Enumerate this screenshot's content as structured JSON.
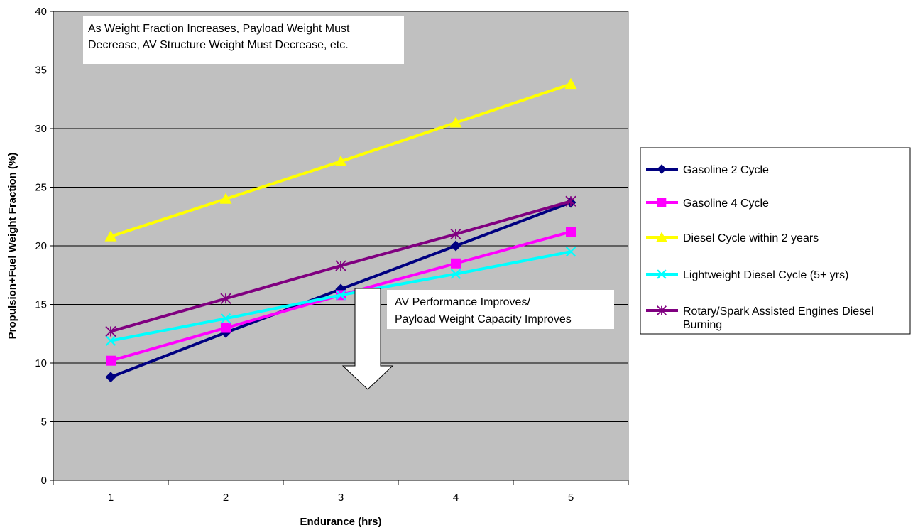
{
  "chart_data": {
    "type": "line",
    "title": "",
    "xlabel": "Endurance (hrs)",
    "ylabel": "Propulsion+Fuel Weight Fraction (%)",
    "x": [
      1,
      2,
      3,
      4,
      5
    ],
    "xticks": [
      "1",
      "2",
      "3",
      "4",
      "5"
    ],
    "ylim": [
      0,
      40
    ],
    "yticks": [
      "0",
      "5",
      "10",
      "15",
      "20",
      "25",
      "30",
      "35",
      "40"
    ],
    "grid": "horizontal",
    "plot_background": "#c0c0c0",
    "legend_position": "right",
    "series": [
      {
        "name": "Gasoline 2 Cycle",
        "values": [
          8.8,
          12.6,
          16.3,
          20.0,
          23.7
        ],
        "color": "#000080",
        "marker": "diamond"
      },
      {
        "name": "Gasoline 4 Cycle",
        "values": [
          10.2,
          13.0,
          15.8,
          18.5,
          21.2
        ],
        "color": "#ff00ff",
        "marker": "square"
      },
      {
        "name": "Diesel Cycle within 2 years",
        "values": [
          20.8,
          24.0,
          27.2,
          30.5,
          33.8
        ],
        "color": "#ffff00",
        "marker": "triangle"
      },
      {
        "name": "Lightweight Diesel Cycle (5+ yrs)",
        "values": [
          11.9,
          13.8,
          15.8,
          17.6,
          19.5
        ],
        "color": "#00ffff",
        "marker": "x"
      },
      {
        "name": "Rotary/Spark Assisted Engines Diesel Burning",
        "values": [
          12.7,
          15.5,
          18.3,
          21.0,
          23.8
        ],
        "color": "#800080",
        "marker": "star"
      }
    ],
    "annotations": [
      {
        "lines": [
          "As Weight Fraction Increases, Payload Weight Must",
          "Decrease, AV Structure Weight Must Decrease, etc."
        ]
      },
      {
        "lines": [
          "AV Performance Improves/",
          "Payload Weight Capacity Improves"
        ]
      }
    ],
    "legend_lines": [
      [
        "Gasoline 2 Cycle"
      ],
      [
        "Gasoline 4 Cycle"
      ],
      [
        "Diesel Cycle within 2 years"
      ],
      [
        "Lightweight Diesel Cycle (5+ yrs)"
      ],
      [
        "Rotary/Spark Assisted Engines Diesel",
        "Burning"
      ]
    ]
  }
}
